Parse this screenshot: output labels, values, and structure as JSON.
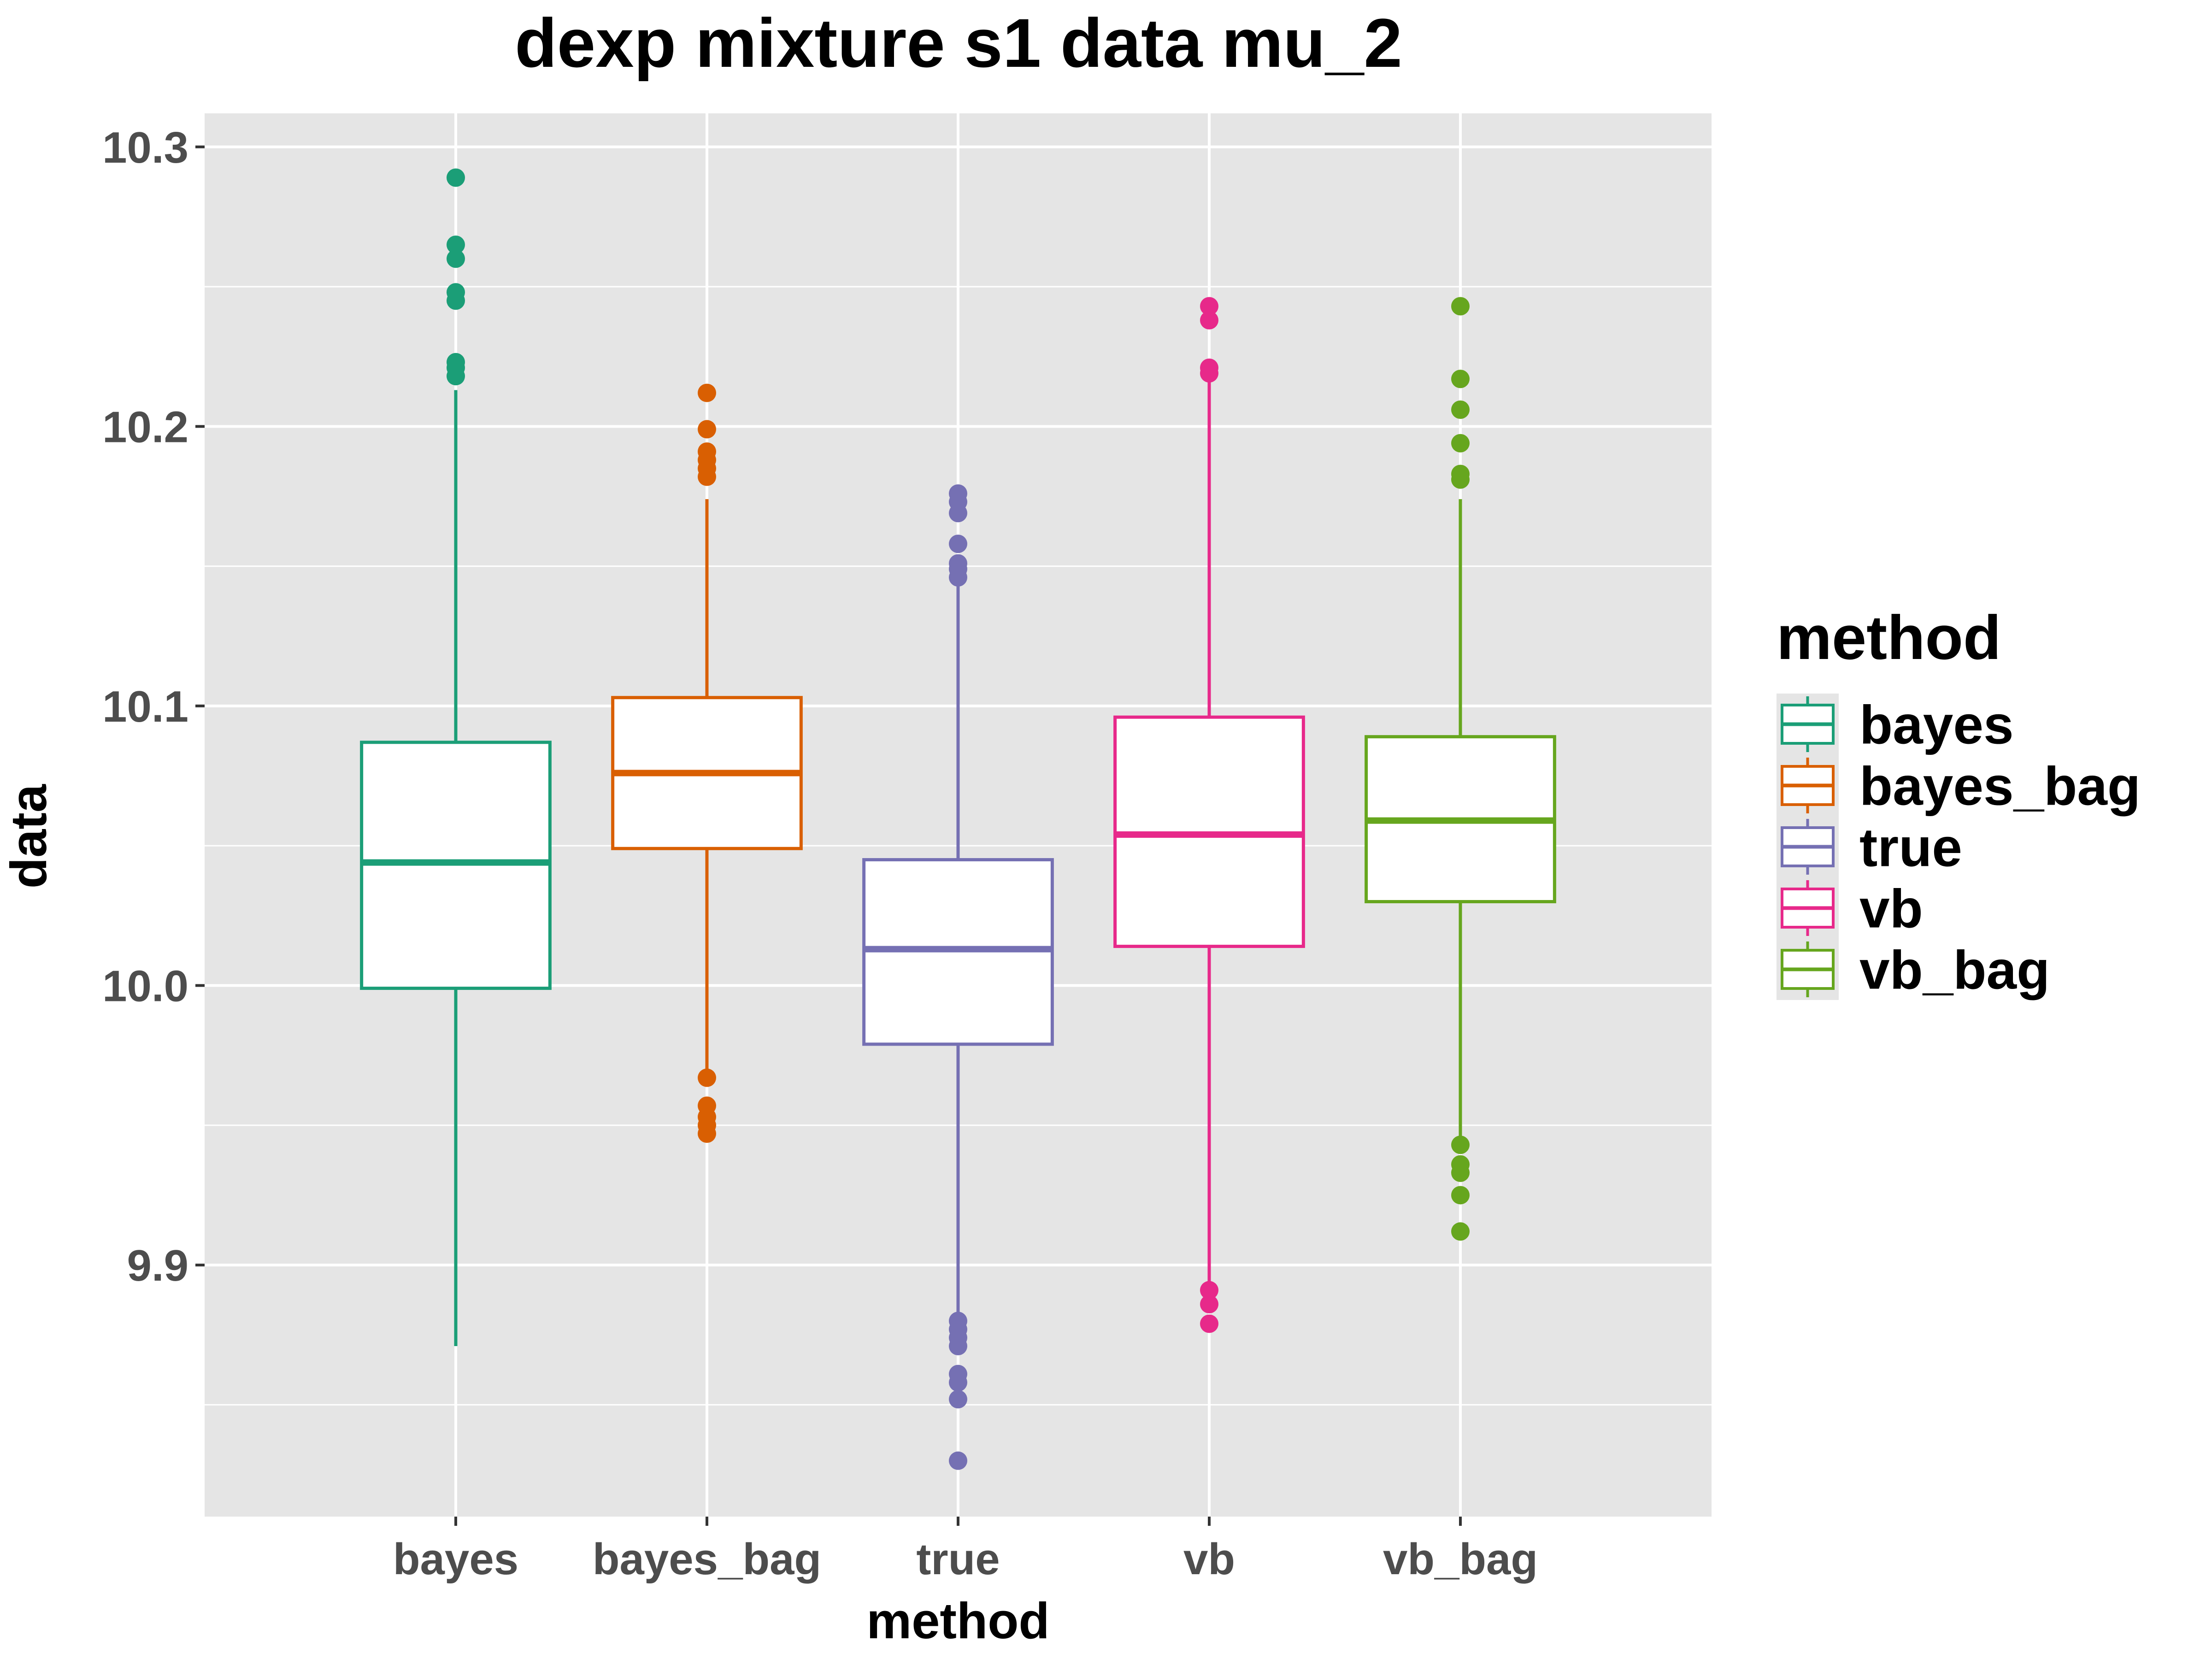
{
  "chart_data": {
    "type": "boxplot",
    "title": "dexp mixture s1 data mu_2",
    "xlabel": "method",
    "ylabel": "data",
    "ylim": [
      9.81,
      10.312
    ],
    "yticks": [
      "9.9",
      "10.0",
      "10.1",
      "10.2",
      "10.3"
    ],
    "ytick_values": [
      9.9,
      10.0,
      10.1,
      10.2,
      10.3
    ],
    "grid": true,
    "legend": {
      "title": "method",
      "position": "right"
    },
    "categories": [
      "bayes",
      "bayes_bag",
      "true",
      "vb",
      "vb_bag"
    ],
    "colors": [
      "#1b9e77",
      "#d95f02",
      "#7570b3",
      "#e7298a",
      "#66a61e"
    ],
    "series": [
      {
        "name": "bayes",
        "whisker_low": 9.871,
        "q1": 9.999,
        "median": 10.044,
        "q3": 10.087,
        "whisker_high": 10.213,
        "outliers": [
          10.289,
          10.265,
          10.26,
          10.248,
          10.245,
          10.223,
          10.221,
          10.218
        ]
      },
      {
        "name": "bayes_bag",
        "whisker_low": 9.967,
        "q1": 10.049,
        "median": 10.076,
        "q3": 10.103,
        "whisker_high": 10.174,
        "outliers": [
          10.212,
          10.199,
          10.191,
          10.188,
          10.185,
          10.182,
          9.967,
          9.957,
          9.953,
          9.95,
          9.947
        ]
      },
      {
        "name": "true",
        "whisker_low": 9.88,
        "q1": 9.979,
        "median": 10.013,
        "q3": 10.045,
        "whisker_high": 10.145,
        "outliers": [
          10.176,
          10.173,
          10.169,
          10.158,
          10.151,
          10.149,
          10.146,
          9.88,
          9.877,
          9.874,
          9.871,
          9.861,
          9.858,
          9.852,
          9.83
        ]
      },
      {
        "name": "vb",
        "whisker_low": 9.891,
        "q1": 10.014,
        "median": 10.054,
        "q3": 10.096,
        "whisker_high": 10.218,
        "outliers": [
          10.243,
          10.238,
          10.221,
          10.219,
          9.891,
          9.886,
          9.879
        ]
      },
      {
        "name": "vb_bag",
        "whisker_low": 9.943,
        "q1": 10.03,
        "median": 10.059,
        "q3": 10.089,
        "whisker_high": 10.174,
        "outliers": [
          10.243,
          10.217,
          10.206,
          10.194,
          10.183,
          10.181,
          9.943,
          9.936,
          9.933,
          9.925,
          9.912
        ]
      }
    ]
  }
}
